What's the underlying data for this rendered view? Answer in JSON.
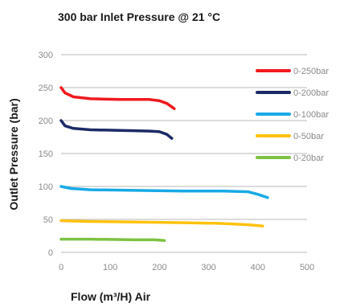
{
  "chart_data": {
    "type": "line",
    "title": "300 bar Inlet Pressure @ 21 °C",
    "xlabel": "Flow (m³/H) Air",
    "ylabel": "Outlet Pressure (bar)",
    "xlim": [
      0,
      500
    ],
    "ylim": [
      0,
      300
    ],
    "x_ticks": [
      "0",
      "100",
      "200",
      "300",
      "400",
      "500"
    ],
    "y_ticks": [
      "0",
      "50",
      "100",
      "150",
      "200",
      "250",
      "300"
    ],
    "grid": "horizontal",
    "legend_position": "right",
    "series": [
      {
        "name": "0-250bar",
        "color": "#f0191d",
        "points": [
          [
            0,
            250
          ],
          [
            8,
            242
          ],
          [
            25,
            236
          ],
          [
            60,
            233
          ],
          [
            120,
            232
          ],
          [
            180,
            232
          ],
          [
            200,
            230
          ],
          [
            215,
            226
          ],
          [
            230,
            218
          ]
        ]
      },
      {
        "name": "0-200bar",
        "color": "#1b2a66",
        "points": [
          [
            0,
            200
          ],
          [
            8,
            192
          ],
          [
            25,
            188
          ],
          [
            60,
            186
          ],
          [
            120,
            185
          ],
          [
            180,
            184
          ],
          [
            200,
            183
          ],
          [
            215,
            179
          ],
          [
            225,
            173
          ]
        ]
      },
      {
        "name": "0-100bar",
        "color": "#18a9e6",
        "points": [
          [
            0,
            100
          ],
          [
            20,
            97
          ],
          [
            60,
            95
          ],
          [
            150,
            94
          ],
          [
            250,
            93
          ],
          [
            330,
            93
          ],
          [
            380,
            92
          ],
          [
            400,
            88
          ],
          [
            420,
            83
          ]
        ]
      },
      {
        "name": "0-50bar",
        "color": "#ffc20e",
        "points": [
          [
            0,
            48
          ],
          [
            50,
            47
          ],
          [
            150,
            46
          ],
          [
            250,
            45
          ],
          [
            320,
            44
          ],
          [
            380,
            42
          ],
          [
            410,
            40
          ]
        ]
      },
      {
        "name": "0-20bar",
        "color": "#7dc242",
        "points": [
          [
            0,
            20
          ],
          [
            60,
            20
          ],
          [
            150,
            19
          ],
          [
            190,
            19
          ],
          [
            210,
            18
          ]
        ]
      }
    ]
  }
}
